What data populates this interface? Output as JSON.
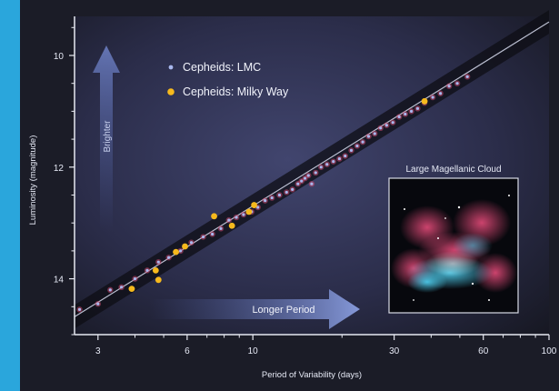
{
  "chart_data": {
    "type": "scatter",
    "title": "",
    "xlabel": "Period of Variability (days)",
    "ylabel": "Luminosity (magnitude)",
    "x_scale": "log",
    "xlim": [
      2.5,
      100
    ],
    "ylim": [
      15.0,
      9.3
    ],
    "y_inverted": true,
    "x_ticks": [
      {
        "value": 3,
        "label": "3"
      },
      {
        "value": 6,
        "label": "6"
      },
      {
        "value": 10,
        "label": "10"
      },
      {
        "value": 30,
        "label": "30"
      },
      {
        "value": 60,
        "label": "60"
      },
      {
        "value": 100,
        "label": "100"
      }
    ],
    "y_ticks": [
      {
        "value": 10,
        "label": "10"
      },
      {
        "value": 12,
        "label": "12"
      },
      {
        "value": 14,
        "label": "14"
      }
    ],
    "grid": false,
    "legend_position": "top-left",
    "legend": [
      {
        "name": "Cepheids: LMC",
        "color": "#a9b8ee"
      },
      {
        "name": "Cepheids: Milky Way",
        "color": "#f6b91d"
      }
    ],
    "trend_line": {
      "x": [
        2.5,
        100
      ],
      "y": [
        14.68,
        9.4
      ]
    },
    "series": [
      {
        "name": "Cepheids: LMC",
        "color": "#a9b8ee",
        "points": [
          [
            2.6,
            14.55
          ],
          [
            3.0,
            14.45
          ],
          [
            3.3,
            14.2
          ],
          [
            3.6,
            14.15
          ],
          [
            4.0,
            14.0
          ],
          [
            4.4,
            13.85
          ],
          [
            4.8,
            13.7
          ],
          [
            5.2,
            13.62
          ],
          [
            5.7,
            13.5
          ],
          [
            6.2,
            13.35
          ],
          [
            6.8,
            13.25
          ],
          [
            7.3,
            13.2
          ],
          [
            7.8,
            13.1
          ],
          [
            8.3,
            12.95
          ],
          [
            8.8,
            12.9
          ],
          [
            9.3,
            12.85
          ],
          [
            9.9,
            12.8
          ],
          [
            10.4,
            12.72
          ],
          [
            11.0,
            12.6
          ],
          [
            11.6,
            12.55
          ],
          [
            12.3,
            12.5
          ],
          [
            13.0,
            12.45
          ],
          [
            13.6,
            12.4
          ],
          [
            14.2,
            12.3
          ],
          [
            14.6,
            12.25
          ],
          [
            15.0,
            12.2
          ],
          [
            15.4,
            12.15
          ],
          [
            15.8,
            12.3
          ],
          [
            16.3,
            12.1
          ],
          [
            17.0,
            12.0
          ],
          [
            17.8,
            11.95
          ],
          [
            18.7,
            11.9
          ],
          [
            19.6,
            11.85
          ],
          [
            20.5,
            11.8
          ],
          [
            21.5,
            11.7
          ],
          [
            22.5,
            11.62
          ],
          [
            23.5,
            11.55
          ],
          [
            24.6,
            11.45
          ],
          [
            25.8,
            11.4
          ],
          [
            27.0,
            11.3
          ],
          [
            28.3,
            11.25
          ],
          [
            29.7,
            11.2
          ],
          [
            31.2,
            11.1
          ],
          [
            32.7,
            11.05
          ],
          [
            34.3,
            11.0
          ],
          [
            36.0,
            10.95
          ],
          [
            38.0,
            10.85
          ],
          [
            40.5,
            10.75
          ],
          [
            43.0,
            10.68
          ],
          [
            46.0,
            10.55
          ],
          [
            49.0,
            10.5
          ],
          [
            53.0,
            10.38
          ]
        ]
      },
      {
        "name": "Cepheids: Milky Way",
        "color": "#f6b91d",
        "points": [
          [
            3.9,
            14.18
          ],
          [
            4.7,
            13.85
          ],
          [
            4.8,
            14.02
          ],
          [
            5.5,
            13.52
          ],
          [
            5.9,
            13.42
          ],
          [
            7.4,
            12.88
          ],
          [
            8.5,
            13.05
          ],
          [
            9.7,
            12.8
          ],
          [
            10.1,
            12.68
          ],
          [
            38.0,
            10.82
          ]
        ]
      }
    ],
    "annotations": {
      "brighter": "Brighter",
      "longer_period": "Longer Period",
      "inset_title": "Large Magellanic Cloud"
    }
  }
}
